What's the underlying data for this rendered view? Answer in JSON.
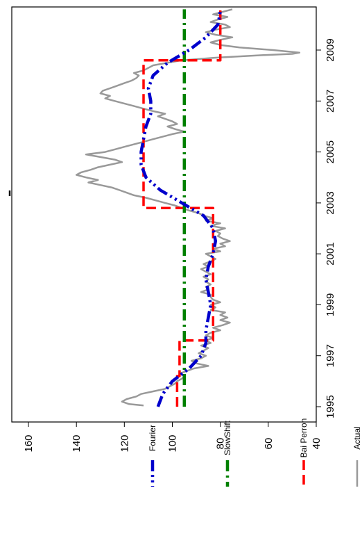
{
  "chart_data": {
    "type": "line",
    "orientation": "rotated-90-clockwise",
    "title": "",
    "xlabel": "",
    "ylabel": "",
    "x_ticks": [
      "1995",
      "1997",
      "1999",
      "2001",
      "2003",
      "2005",
      "2007",
      "2009"
    ],
    "y_ticks": [
      "160",
      "140",
      "120",
      "100",
      "80",
      "60",
      "40"
    ],
    "xlim": [
      1994.0,
      2010.8
    ],
    "ylim": [
      40,
      160
    ],
    "grid": false,
    "legend_position": "bottom (right side after rotation)",
    "series": [
      {
        "name": "Actual",
        "color": "#999999",
        "style": "solid",
        "points": [
          [
            1995.05,
            112
          ],
          [
            1995.1,
            118
          ],
          [
            1995.2,
            121
          ],
          [
            1995.3,
            119
          ],
          [
            1995.4,
            115
          ],
          [
            1995.5,
            113
          ],
          [
            1995.6,
            108
          ],
          [
            1995.7,
            103
          ],
          [
            1995.8,
            101
          ],
          [
            1995.9,
            99
          ],
          [
            1996.0,
            98
          ],
          [
            1996.1,
            96
          ],
          [
            1996.2,
            95
          ],
          [
            1996.3,
            97
          ],
          [
            1996.4,
            94
          ],
          [
            1996.5,
            91
          ],
          [
            1996.6,
            85
          ],
          [
            1996.7,
            90
          ],
          [
            1996.8,
            92
          ],
          [
            1996.9,
            88
          ],
          [
            1997.0,
            86
          ],
          [
            1997.1,
            89
          ],
          [
            1997.2,
            87
          ],
          [
            1997.3,
            85
          ],
          [
            1997.4,
            88
          ],
          [
            1997.5,
            84
          ],
          [
            1997.6,
            86
          ],
          [
            1997.7,
            83
          ],
          [
            1997.8,
            86
          ],
          [
            1997.9,
            84
          ],
          [
            1998.0,
            80
          ],
          [
            1998.1,
            83
          ],
          [
            1998.2,
            79
          ],
          [
            1998.3,
            76
          ],
          [
            1998.4,
            80
          ],
          [
            1998.5,
            77
          ],
          [
            1998.6,
            80
          ],
          [
            1998.7,
            78
          ],
          [
            1998.8,
            84
          ],
          [
            1998.9,
            82
          ],
          [
            1999.0,
            84
          ],
          [
            1999.1,
            80
          ],
          [
            1999.2,
            83
          ],
          [
            1999.3,
            84
          ],
          [
            1999.4,
            84
          ],
          [
            1999.5,
            88
          ],
          [
            1999.6,
            85
          ],
          [
            1999.7,
            86
          ],
          [
            1999.8,
            84
          ],
          [
            1999.9,
            86
          ],
          [
            2000.0,
            85
          ],
          [
            2000.1,
            87
          ],
          [
            2000.2,
            84
          ],
          [
            2000.3,
            86
          ],
          [
            2000.4,
            88
          ],
          [
            2000.5,
            85
          ],
          [
            2000.6,
            87
          ],
          [
            2000.7,
            84
          ],
          [
            2000.8,
            82
          ],
          [
            2000.9,
            84
          ],
          [
            2001.0,
            86
          ],
          [
            2001.1,
            80
          ],
          [
            2001.2,
            83
          ],
          [
            2001.3,
            78
          ],
          [
            2001.4,
            80
          ],
          [
            2001.5,
            76
          ],
          [
            2001.6,
            79
          ],
          [
            2001.7,
            81
          ],
          [
            2001.8,
            80
          ],
          [
            2001.9,
            82
          ],
          [
            2002.0,
            78
          ],
          [
            2002.1,
            84
          ],
          [
            2002.2,
            80
          ],
          [
            2002.3,
            86
          ],
          [
            2002.4,
            83
          ],
          [
            2002.5,
            87
          ],
          [
            2002.6,
            89
          ],
          [
            2002.7,
            93
          ],
          [
            2002.8,
            96
          ],
          [
            2002.9,
            99
          ],
          [
            2003.0,
            103
          ],
          [
            2003.1,
            107
          ],
          [
            2003.2,
            111
          ],
          [
            2003.3,
            116
          ],
          [
            2003.4,
            119
          ],
          [
            2003.5,
            122
          ],
          [
            2003.6,
            125
          ],
          [
            2003.7,
            130
          ],
          [
            2003.8,
            135
          ],
          [
            2003.9,
            131
          ],
          [
            2004.0,
            136
          ],
          [
            2004.1,
            140
          ],
          [
            2004.2,
            138
          ],
          [
            2004.3,
            134
          ],
          [
            2004.4,
            131
          ],
          [
            2004.5,
            126
          ],
          [
            2004.6,
            121
          ],
          [
            2004.7,
            124
          ],
          [
            2004.8,
            130
          ],
          [
            2004.9,
            136
          ],
          [
            2005.0,
            128
          ],
          [
            2005.1,
            124
          ],
          [
            2005.2,
            120
          ],
          [
            2005.3,
            116
          ],
          [
            2005.4,
            112
          ],
          [
            2005.5,
            108
          ],
          [
            2005.6,
            104
          ],
          [
            2005.7,
            100
          ],
          [
            2005.8,
            95
          ],
          [
            2005.9,
            99
          ],
          [
            2006.0,
            102
          ],
          [
            2006.1,
            98
          ],
          [
            2006.2,
            100
          ],
          [
            2006.3,
            103
          ],
          [
            2006.4,
            106
          ],
          [
            2006.5,
            103
          ],
          [
            2006.6,
            108
          ],
          [
            2006.7,
            112
          ],
          [
            2006.8,
            116
          ],
          [
            2006.9,
            120
          ],
          [
            2007.0,
            124
          ],
          [
            2007.1,
            128
          ],
          [
            2007.2,
            126
          ],
          [
            2007.3,
            130
          ],
          [
            2007.4,
            129
          ],
          [
            2007.5,
            126
          ],
          [
            2007.6,
            123
          ],
          [
            2007.7,
            120
          ],
          [
            2007.8,
            117
          ],
          [
            2007.9,
            115
          ],
          [
            2008.0,
            114
          ],
          [
            2008.1,
            116
          ],
          [
            2008.2,
            112
          ],
          [
            2008.3,
            110
          ],
          [
            2008.4,
            108
          ],
          [
            2008.5,
            102
          ],
          [
            2008.6,
            96
          ],
          [
            2008.7,
            82
          ],
          [
            2008.8,
            62
          ],
          [
            2008.85,
            50
          ],
          [
            2008.9,
            47
          ],
          [
            2009.0,
            58
          ],
          [
            2009.1,
            72
          ],
          [
            2009.2,
            80
          ],
          [
            2009.3,
            84
          ],
          [
            2009.4,
            80
          ],
          [
            2009.5,
            75
          ],
          [
            2009.6,
            82
          ],
          [
            2009.7,
            86
          ],
          [
            2009.8,
            82
          ],
          [
            2009.9,
            76
          ],
          [
            2010.0,
            78
          ],
          [
            2010.1,
            84
          ],
          [
            2010.2,
            81
          ],
          [
            2010.3,
            77
          ],
          [
            2010.4,
            83
          ],
          [
            2010.5,
            79
          ],
          [
            2010.6,
            75
          ]
        ]
      },
      {
        "name": "Bai Perron",
        "color": "#ff0000",
        "style": "dashed",
        "points": [
          [
            1995.0,
            98
          ],
          [
            1996.2,
            98
          ],
          [
            1996.2,
            97
          ],
          [
            1997.6,
            97
          ],
          [
            1997.6,
            83
          ],
          [
            2002.8,
            83
          ],
          [
            2002.8,
            112
          ],
          [
            2008.6,
            112
          ],
          [
            2008.6,
            80
          ],
          [
            2010.6,
            80
          ]
        ]
      },
      {
        "name": "SlowShift",
        "color": "#008000",
        "style": "dashdot",
        "points": [
          [
            1995.0,
            95
          ],
          [
            2010.6,
            95
          ]
        ]
      },
      {
        "name": "Fourier",
        "color": "#0000cc",
        "style": "dashdotdot",
        "points": [
          [
            1995.0,
            106
          ],
          [
            1995.5,
            104
          ],
          [
            1996.0,
            100
          ],
          [
            1996.5,
            93
          ],
          [
            1997.0,
            88
          ],
          [
            1997.5,
            86
          ],
          [
            1998.0,
            86
          ],
          [
            1998.5,
            85
          ],
          [
            1999.0,
            84
          ],
          [
            1999.5,
            85
          ],
          [
            2000.0,
            86
          ],
          [
            2000.5,
            85
          ],
          [
            2001.0,
            83
          ],
          [
            2001.5,
            82
          ],
          [
            2002.0,
            83
          ],
          [
            2002.5,
            87
          ],
          [
            2003.0,
            96
          ],
          [
            2003.5,
            105
          ],
          [
            2004.0,
            111
          ],
          [
            2004.5,
            113
          ],
          [
            2005.0,
            113
          ],
          [
            2005.5,
            112
          ],
          [
            2006.0,
            111
          ],
          [
            2006.5,
            109
          ],
          [
            2007.0,
            109
          ],
          [
            2007.5,
            110
          ],
          [
            2008.0,
            108
          ],
          [
            2008.5,
            102
          ],
          [
            2009.0,
            93
          ],
          [
            2009.5,
            86
          ],
          [
            2010.0,
            81
          ],
          [
            2010.5,
            80
          ]
        ]
      }
    ]
  }
}
